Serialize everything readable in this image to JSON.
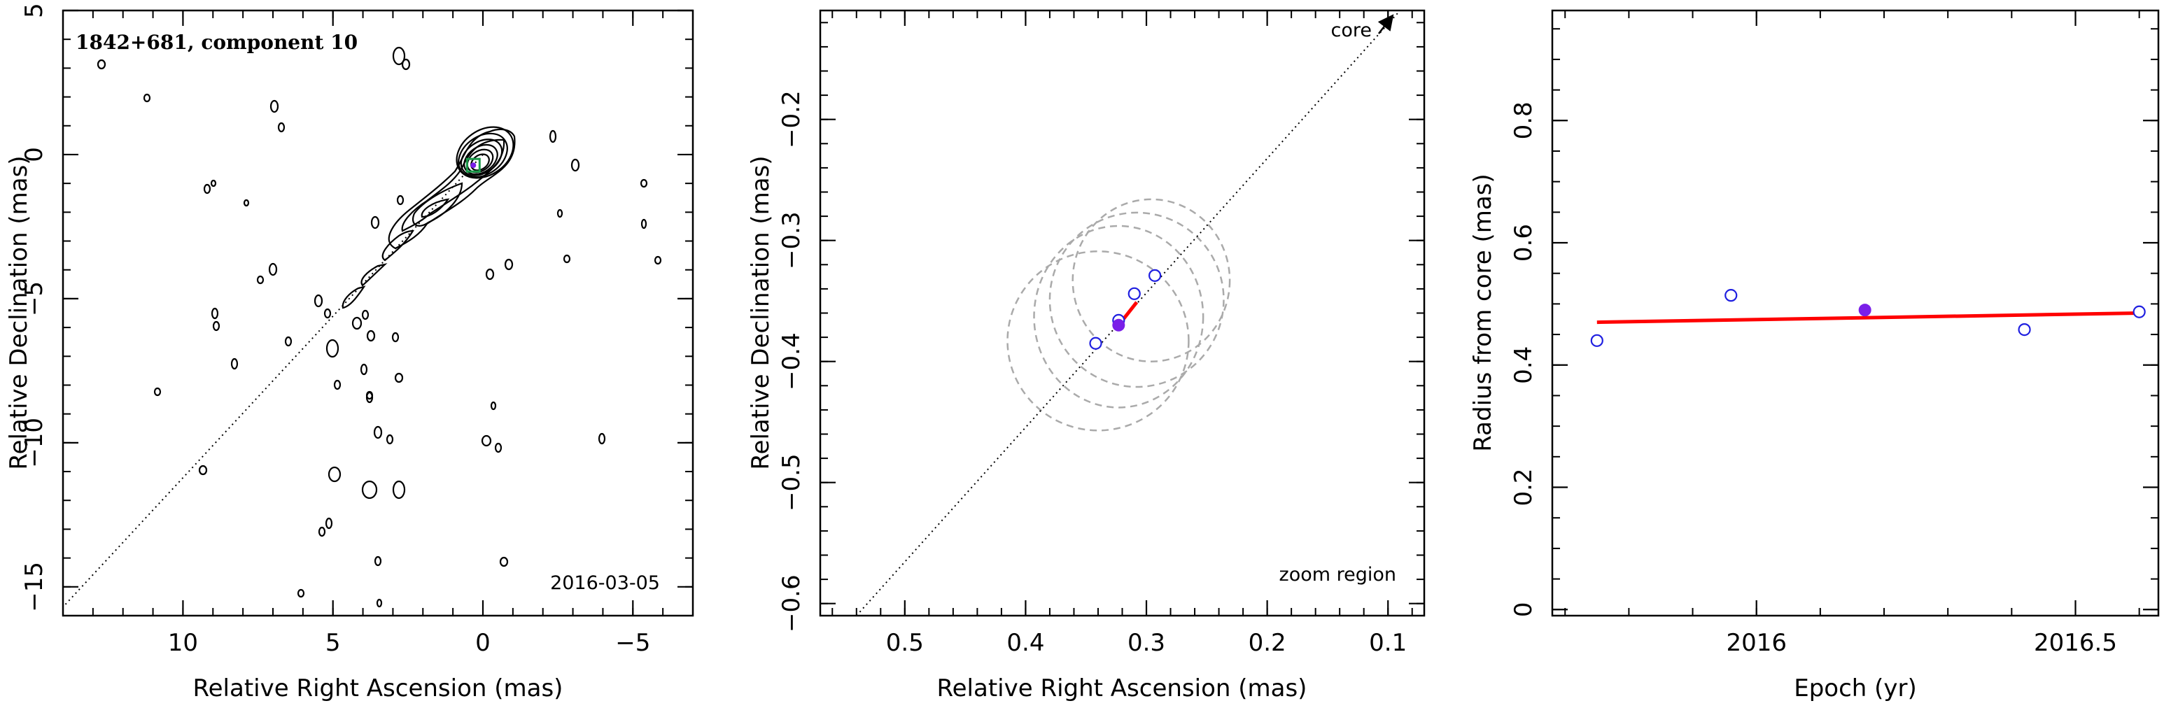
{
  "colors": {
    "hollow_marker": "#1f1fe0",
    "filled_marker": "#7a1fe8",
    "fit_line": "#ff0000",
    "ellipse": "#aaaaaa",
    "contour": "#000000",
    "marker_box": "#1a9a4a"
  },
  "chart_data": [
    {
      "type": "contour",
      "title": "1842+681, component 10",
      "date": "2016-03-05",
      "xlabel": "Relative Right Ascension (mas)",
      "ylabel": "Relative Declination (mas)",
      "xlim": [
        14,
        -7
      ],
      "ylim": [
        -16,
        5
      ],
      "xticks": [
        10,
        5,
        0,
        -5
      ],
      "yticks": [
        5,
        0,
        -5,
        -10,
        -15
      ],
      "jet_axis_line": [
        [
          0.0,
          0.0
        ],
        [
          14,
          -15.7
        ]
      ],
      "component_marker": {
        "x": 0.32,
        "y": -0.37
      }
    },
    {
      "type": "scatter",
      "xlabel": "Relative Right Ascension (mas)",
      "ylabel": "Relative Declination (mas)",
      "xlim": [
        0.57,
        0.07
      ],
      "ylim": [
        -0.61,
        -0.11
      ],
      "xticks": [
        0.5,
        0.4,
        0.3,
        0.2,
        0.1
      ],
      "xtick_labels": [
        "0.5",
        "0.4",
        "0.3",
        "0.2",
        "0.1"
      ],
      "yticks": [
        -0.2,
        -0.3,
        -0.4,
        -0.5,
        -0.6
      ],
      "ytick_labels": [
        "−0.2",
        "−0.3",
        "−0.4",
        "−0.5",
        "−0.6"
      ],
      "core_label": "core",
      "zoom_label": "zoom region",
      "line_points": [
        [
          0.54,
          -0.61
        ],
        [
          0.09,
          -0.11
        ]
      ],
      "hollow_points": [
        [
          0.342,
          -0.385
        ],
        [
          0.323,
          -0.366
        ],
        [
          0.31,
          -0.344
        ],
        [
          0.293,
          -0.329
        ]
      ],
      "filled_point": [
        0.323,
        -0.37
      ],
      "motion_vector": [
        [
          0.323,
          -0.37
        ],
        [
          0.308,
          -0.351
        ]
      ],
      "ellipses": [
        {
          "cx": 0.34,
          "cy": -0.383,
          "rx": 0.075,
          "ry": 0.074
        },
        {
          "cx": 0.323,
          "cy": -0.363,
          "rx": 0.07,
          "ry": 0.075
        },
        {
          "cx": 0.308,
          "cy": -0.349,
          "rx": 0.072,
          "ry": 0.072
        },
        {
          "cx": 0.296,
          "cy": -0.333,
          "rx": 0.065,
          "ry": 0.067
        }
      ]
    },
    {
      "type": "scatter",
      "xlabel": "Epoch (yr)",
      "ylabel": "Radius from core (mas)",
      "xlim": [
        2015.68,
        2016.63
      ],
      "ylim": [
        -0.01,
        0.98
      ],
      "xticks": [
        2016,
        2016.5
      ],
      "xtick_labels": [
        "2016",
        "2016.5"
      ],
      "yticks": [
        0,
        0.2,
        0.4,
        0.6,
        0.8
      ],
      "ytick_labels": [
        "0",
        "0.2",
        "0.4",
        "0.6",
        "0.8"
      ],
      "hollow_points": [
        [
          2015.75,
          0.44
        ],
        [
          2015.96,
          0.514
        ],
        [
          2016.42,
          0.458
        ],
        [
          2016.6,
          0.487
        ]
      ],
      "filled_point": [
        2016.17,
        0.49
      ],
      "fit_line": [
        [
          2015.75,
          0.47
        ],
        [
          2016.6,
          0.485
        ]
      ]
    }
  ]
}
